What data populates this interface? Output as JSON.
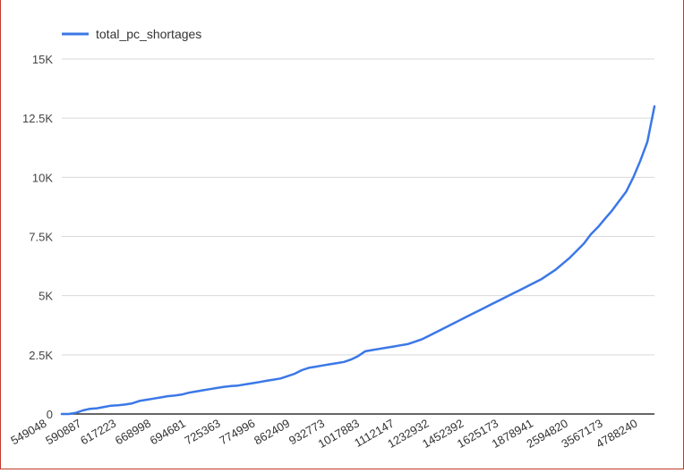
{
  "chart_data": {
    "type": "line",
    "title": "",
    "xlabel": "",
    "ylabel": "",
    "ylim": [
      0,
      15000
    ],
    "yticks": [
      0,
      2500,
      5000,
      7500,
      10000,
      12500,
      15000
    ],
    "ytick_labels": [
      "0",
      "2.5K",
      "5K",
      "7.5K",
      "10K",
      "12.5K",
      "15K"
    ],
    "legend": {
      "position": "top-left",
      "entries": [
        "total_pc_shortages"
      ]
    },
    "grid": true,
    "series_color": "#3b78e7",
    "x_tick_labels": [
      "549048",
      "590887",
      "617223",
      "668998",
      "694681",
      "725363",
      "774996",
      "862409",
      "932773",
      "1017883",
      "1112147",
      "1232932",
      "1452392",
      "1625173",
      "1878941",
      "2594820",
      "3567173",
      "4788240"
    ],
    "series": [
      {
        "name": "total_pc_shortages",
        "values": [
          0,
          0,
          50,
          150,
          220,
          240,
          300,
          350,
          370,
          400,
          450,
          550,
          600,
          650,
          700,
          750,
          780,
          820,
          900,
          950,
          1000,
          1050,
          1100,
          1150,
          1180,
          1200,
          1250,
          1300,
          1350,
          1400,
          1450,
          1500,
          1600,
          1700,
          1850,
          1950,
          2000,
          2050,
          2100,
          2150,
          2200,
          2300,
          2450,
          2650,
          2700,
          2750,
          2800,
          2850,
          2900,
          2950,
          3050,
          3150,
          3300,
          3450,
          3600,
          3750,
          3900,
          4050,
          4200,
          4350,
          4500,
          4650,
          4800,
          4950,
          5100,
          5250,
          5400,
          5550,
          5700,
          5900,
          6100,
          6350,
          6600,
          6900,
          7200,
          7600,
          7900,
          8250,
          8600,
          9000,
          9400,
          10000,
          10700,
          11500,
          13000
        ]
      }
    ]
  }
}
